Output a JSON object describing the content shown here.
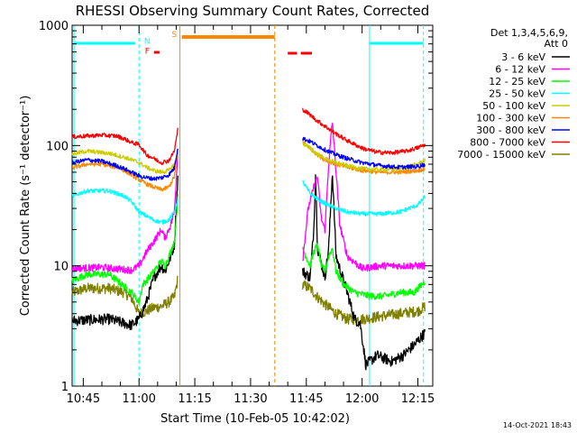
{
  "chart_data": {
    "type": "line",
    "title": "RHESSI Observing Summary Count Rates, Corrected",
    "xlabel": "Start Time (10-Feb-05 10:42:02)",
    "ylabel": "Corrected Count Rate (s⁻¹ detector⁻¹)",
    "yscale": "log",
    "ylim": [
      1,
      1000
    ],
    "xlim_minutes": [
      42,
      139
    ],
    "y_ticks": [
      {
        "v": 1,
        "label": "1"
      },
      {
        "v": 10,
        "label": "10"
      },
      {
        "v": 100,
        "label": "100"
      },
      {
        "v": 1000,
        "label": "1000"
      }
    ],
    "x_ticks": [
      {
        "m": 45,
        "label": "10:45"
      },
      {
        "m": 60,
        "label": "11:00"
      },
      {
        "m": 75,
        "label": "11:15"
      },
      {
        "m": 90,
        "label": "11:30"
      },
      {
        "m": 105,
        "label": "11:45"
      },
      {
        "m": 120,
        "label": "12:00"
      },
      {
        "m": 135,
        "label": "12:15"
      }
    ],
    "legend": {
      "header1": "Det 1,3,4,5,6,9,",
      "header2": "Att 0",
      "placement": "right"
    },
    "series": [
      {
        "name": "3 - 6 keV",
        "color": "#000000",
        "seg1": [
          [
            42,
            3.5
          ],
          [
            52,
            3.6
          ],
          [
            58,
            3.2
          ],
          [
            60,
            3.6
          ],
          [
            62,
            5
          ],
          [
            64,
            8
          ],
          [
            66,
            10
          ],
          [
            67,
            9
          ],
          [
            68.5,
            12
          ],
          [
            69.5,
            15
          ],
          [
            70.5,
            60
          ]
        ],
        "seg2": [
          [
            104,
            9
          ],
          [
            106,
            8
          ],
          [
            107,
            20
          ],
          [
            107.5,
            60
          ],
          [
            108,
            14
          ],
          [
            110,
            8
          ],
          [
            111,
            14
          ],
          [
            112,
            60
          ],
          [
            113,
            12
          ],
          [
            116,
            6
          ],
          [
            118,
            3.6
          ],
          [
            119.5,
            3.3
          ],
          [
            121,
            1.5
          ],
          [
            124,
            1.8
          ],
          [
            128,
            1.6
          ],
          [
            131,
            1.8
          ],
          [
            134,
            2.2
          ],
          [
            137,
            2.8
          ]
        ]
      },
      {
        "name": "6 - 12 keV",
        "color": "#ff00ff",
        "seg1": [
          [
            42,
            9.5
          ],
          [
            50,
            9.7
          ],
          [
            58,
            9.2
          ],
          [
            60,
            10
          ],
          [
            62,
            13
          ],
          [
            64,
            16
          ],
          [
            66,
            20
          ],
          [
            67,
            17
          ],
          [
            68.5,
            22
          ],
          [
            69.5,
            28
          ],
          [
            70.5,
            100
          ]
        ],
        "seg2": [
          [
            104,
            11
          ],
          [
            105.5,
            30
          ],
          [
            107,
            45
          ],
          [
            108,
            55
          ],
          [
            109,
            25
          ],
          [
            110,
            20
          ],
          [
            111,
            70
          ],
          [
            112,
            160
          ],
          [
            113,
            60
          ],
          [
            114,
            22
          ],
          [
            116,
            12
          ],
          [
            120,
            9.5
          ],
          [
            125,
            10
          ],
          [
            130,
            10
          ],
          [
            137,
            10
          ]
        ]
      },
      {
        "name": "12 - 25 keV",
        "color": "#00ff00",
        "seg1": [
          [
            42,
            7.5
          ],
          [
            46,
            8.5
          ],
          [
            52,
            8.5
          ],
          [
            58,
            6
          ],
          [
            60,
            5
          ],
          [
            61,
            7
          ],
          [
            62,
            7.5
          ],
          [
            64,
            9
          ],
          [
            66,
            11
          ],
          [
            67,
            10
          ],
          [
            68.5,
            13
          ],
          [
            69.5,
            16
          ],
          [
            70.5,
            40
          ]
        ],
        "seg2": [
          [
            104,
            14
          ],
          [
            106,
            10
          ],
          [
            107,
            13
          ],
          [
            108,
            15
          ],
          [
            109,
            10
          ],
          [
            110,
            9
          ],
          [
            111,
            12
          ],
          [
            112,
            14
          ],
          [
            113,
            9
          ],
          [
            115,
            7
          ],
          [
            118,
            6
          ],
          [
            122,
            5.6
          ],
          [
            126,
            5.6
          ],
          [
            130,
            6
          ],
          [
            134,
            6
          ],
          [
            137,
            7.5
          ]
        ]
      },
      {
        "name": "25 - 50 keV",
        "color": "#00ffff",
        "seg1": [
          [
            42,
            38
          ],
          [
            46,
            42
          ],
          [
            52,
            42
          ],
          [
            56,
            38
          ],
          [
            58,
            34
          ],
          [
            60,
            28
          ],
          [
            62,
            26
          ],
          [
            64,
            24
          ],
          [
            66,
            23
          ],
          [
            68,
            24
          ],
          [
            69.5,
            28
          ],
          [
            70.5,
            36
          ]
        ],
        "seg2": [
          [
            104,
            50
          ],
          [
            106,
            40
          ],
          [
            108,
            36
          ],
          [
            110,
            33
          ],
          [
            113,
            30
          ],
          [
            116,
            28
          ],
          [
            120,
            27
          ],
          [
            125,
            27
          ],
          [
            130,
            28
          ],
          [
            135,
            32
          ],
          [
            137,
            38
          ]
        ]
      },
      {
        "name": "50 - 100 keV",
        "color": "#cccc00",
        "seg1": [
          [
            42,
            85
          ],
          [
            46,
            90
          ],
          [
            52,
            86
          ],
          [
            56,
            80
          ],
          [
            58,
            76
          ],
          [
            60,
            72
          ],
          [
            62,
            66
          ],
          [
            64,
            62
          ],
          [
            66,
            60
          ],
          [
            68,
            62
          ],
          [
            69.5,
            70
          ],
          [
            70.5,
            88
          ]
        ],
        "seg2": [
          [
            104,
            105
          ],
          [
            106,
            95
          ],
          [
            108,
            85
          ],
          [
            110,
            78
          ],
          [
            113,
            72
          ],
          [
            116,
            68
          ],
          [
            120,
            64
          ],
          [
            125,
            63
          ],
          [
            130,
            64
          ],
          [
            135,
            70
          ],
          [
            137,
            76
          ]
        ]
      },
      {
        "name": "100 - 300 keV",
        "color": "#ff8800",
        "seg1": [
          [
            42,
            65
          ],
          [
            46,
            70
          ],
          [
            50,
            70
          ],
          [
            54,
            66
          ],
          [
            56,
            62
          ],
          [
            58,
            57
          ],
          [
            60,
            52
          ],
          [
            62,
            48
          ],
          [
            64,
            45
          ],
          [
            66,
            43
          ],
          [
            68,
            45
          ],
          [
            69.5,
            55
          ],
          [
            70.5,
            95
          ]
        ],
        "seg2": [
          [
            104,
            108
          ],
          [
            106,
            95
          ],
          [
            108,
            84
          ],
          [
            110,
            76
          ],
          [
            113,
            70
          ],
          [
            116,
            66
          ],
          [
            120,
            62
          ],
          [
            125,
            60
          ],
          [
            130,
            60
          ],
          [
            135,
            62
          ],
          [
            137,
            64
          ]
        ]
      },
      {
        "name": "300 - 800 keV",
        "color": "#0000ff",
        "seg1": [
          [
            42,
            72
          ],
          [
            46,
            76
          ],
          [
            50,
            74
          ],
          [
            54,
            68
          ],
          [
            56,
            64
          ],
          [
            58,
            60
          ],
          [
            60,
            56
          ],
          [
            62,
            54
          ],
          [
            64,
            53
          ],
          [
            66,
            54
          ],
          [
            68,
            57
          ],
          [
            69.5,
            65
          ],
          [
            70.5,
            100
          ]
        ],
        "seg2": [
          [
            104,
            115
          ],
          [
            106,
            108
          ],
          [
            108,
            100
          ],
          [
            110,
            92
          ],
          [
            113,
            84
          ],
          [
            116,
            78
          ],
          [
            120,
            72
          ],
          [
            125,
            68
          ],
          [
            130,
            66
          ],
          [
            135,
            67
          ],
          [
            137,
            70
          ]
        ]
      },
      {
        "name": "800 - 7000 keV",
        "color": "#ff0000",
        "seg1": [
          [
            42,
            118
          ],
          [
            46,
            120
          ],
          [
            50,
            122
          ],
          [
            54,
            120
          ],
          [
            56,
            114
          ],
          [
            58,
            106
          ],
          [
            60,
            102
          ],
          [
            62,
            84
          ],
          [
            64,
            78
          ],
          [
            66,
            72
          ],
          [
            68,
            75
          ],
          [
            69.5,
            90
          ],
          [
            70.5,
            140
          ]
        ],
        "seg2": [
          [
            104,
            200
          ],
          [
            106,
            180
          ],
          [
            108,
            160
          ],
          [
            110,
            145
          ],
          [
            113,
            125
          ],
          [
            116,
            110
          ],
          [
            120,
            95
          ],
          [
            124,
            88
          ],
          [
            128,
            87
          ],
          [
            132,
            90
          ],
          [
            135,
            96
          ],
          [
            137,
            102
          ]
        ]
      },
      {
        "name": "7000 - 15000 keV",
        "color": "#808000",
        "seg1": [
          [
            42,
            6
          ],
          [
            46,
            6.5
          ],
          [
            52,
            6.5
          ],
          [
            56,
            6
          ],
          [
            58,
            5.4
          ],
          [
            60,
            4
          ],
          [
            62,
            4.2
          ],
          [
            64,
            4.5
          ],
          [
            66,
            4.6
          ],
          [
            68,
            5
          ],
          [
            69.5,
            5.5
          ],
          [
            70.5,
            8
          ]
        ],
        "seg2": [
          [
            104,
            7
          ],
          [
            106,
            6.5
          ],
          [
            108,
            5.5
          ],
          [
            110,
            4.8
          ],
          [
            113,
            4
          ],
          [
            116,
            3.6
          ],
          [
            120,
            3.6
          ],
          [
            125,
            3.8
          ],
          [
            130,
            4
          ],
          [
            135,
            4.2
          ],
          [
            137,
            4.6
          ]
        ]
      }
    ],
    "annotations": {
      "night_markers_cyan": [
        42.5,
        60,
        122,
        136.5
      ],
      "saa_markers_orange": [
        71,
        96.5
      ],
      "cyan_bars": [
        [
          42.5,
          59
        ],
        [
          122,
          136.5
        ]
      ],
      "orange_bar": [
        71.5,
        96.5
      ],
      "red_flare_bars": [
        [
          64,
          65.5
        ],
        [
          100,
          102.5
        ],
        [
          103.5,
          106.5
        ]
      ],
      "labels": [
        {
          "text": "N",
          "m": 62.2,
          "v": 700,
          "color": "#00ffff"
        },
        {
          "text": "F",
          "m": 62.2,
          "v": 580,
          "color": "#ff0000"
        },
        {
          "text": "S",
          "m": 69.5,
          "v": 800,
          "color": "#ff8800"
        }
      ]
    },
    "grid": false
  },
  "timestamp": "14-Oct-2021 18:43"
}
